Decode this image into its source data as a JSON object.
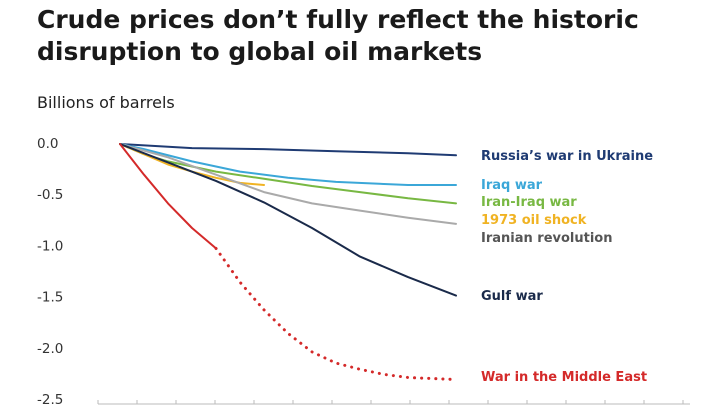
{
  "chart_data": {
    "type": "line",
    "title_lines": [
      "Crude prices don’t fully reflect the historic",
      "disruption to global oil markets"
    ],
    "ylabel": "Billions of barrels",
    "ylim": [
      -2.5,
      0.0
    ],
    "yticks": [
      {
        "value": 0.0,
        "label": "0.0"
      },
      {
        "value": -0.5,
        "label": "-0.5"
      },
      {
        "value": -1.0,
        "label": "-1.0"
      },
      {
        "value": -1.5,
        "label": "-1.5"
      },
      {
        "value": -2.0,
        "label": "-2.0"
      },
      {
        "value": -2.5,
        "label": "-2.5"
      }
    ],
    "x_categories": 15,
    "grid": false,
    "series": [
      {
        "name": "Russia’s war in Ukraine",
        "color": "#1f3b73",
        "style": "solid",
        "x": [
          0,
          3,
          6,
          9,
          12,
          14
        ],
        "values": [
          0.0,
          -0.04,
          -0.05,
          -0.07,
          -0.09,
          -0.11
        ]
      },
      {
        "name": "Iraq war",
        "color": "#3ba7d8",
        "style": "solid",
        "x": [
          0,
          1,
          3,
          5,
          7,
          9,
          12,
          14
        ],
        "values": [
          0.0,
          -0.05,
          -0.17,
          -0.27,
          -0.33,
          -0.37,
          -0.4,
          -0.4
        ]
      },
      {
        "name": "Iran-Iraq war",
        "color": "#78b843",
        "style": "solid",
        "x": [
          0,
          1,
          2,
          4,
          6,
          8,
          10,
          12,
          14
        ],
        "values": [
          0.0,
          -0.1,
          -0.17,
          -0.27,
          -0.34,
          -0.41,
          -0.47,
          -0.53,
          -0.58
        ]
      },
      {
        "name": "1973 oil shock",
        "color": "#f0b323",
        "style": "solid",
        "x": [
          0,
          1,
          2,
          3,
          4,
          5,
          6
        ],
        "values": [
          0.0,
          -0.1,
          -0.2,
          -0.27,
          -0.33,
          -0.38,
          -0.4
        ]
      },
      {
        "name": "Iranian revolution",
        "color": "#aaaaaa",
        "style": "solid",
        "x": [
          0,
          2,
          4,
          6,
          8,
          10,
          12,
          14
        ],
        "values": [
          0.0,
          -0.13,
          -0.3,
          -0.47,
          -0.58,
          -0.65,
          -0.72,
          -0.78
        ]
      },
      {
        "name": "Gulf war",
        "color": "#1a2a4a",
        "style": "solid",
        "x": [
          0,
          2,
          4,
          6,
          8,
          10,
          12,
          14
        ],
        "values": [
          0.0,
          -0.18,
          -0.36,
          -0.57,
          -0.82,
          -1.1,
          -1.3,
          -1.48
        ]
      },
      {
        "name": "War in the Middle East",
        "color": "#d42a2a",
        "style": "solid",
        "x": [
          0,
          1,
          2,
          3,
          4
        ],
        "values": [
          0.0,
          -0.3,
          -0.58,
          -0.82,
          -1.02
        ]
      },
      {
        "name": "",
        "color": "#d42a2a",
        "style": "dotted",
        "x": [
          4,
          5,
          6,
          7,
          8,
          9,
          10,
          11,
          12,
          13,
          14
        ],
        "values": [
          -1.02,
          -1.35,
          -1.62,
          -1.85,
          -2.03,
          -2.14,
          -2.2,
          -2.25,
          -2.28,
          -2.29,
          -2.3
        ]
      }
    ]
  }
}
